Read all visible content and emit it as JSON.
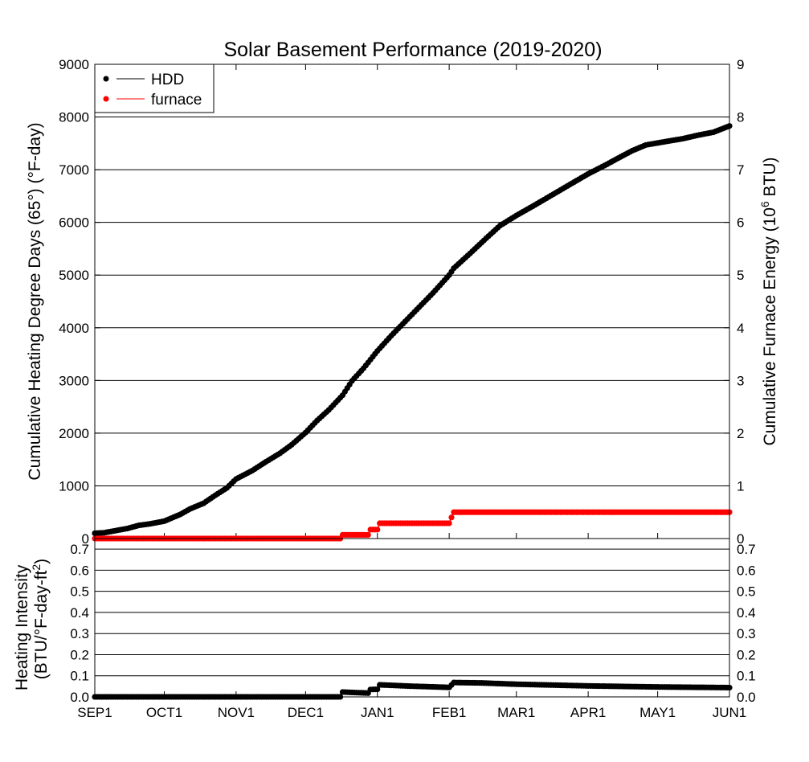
{
  "chart_data": {
    "type": "line",
    "title": "Solar Basement Performance (2019-2020)",
    "x_ticks": [
      "SEP1",
      "OCT1",
      "NOV1",
      "DEC1",
      "JAN1",
      "FEB1",
      "MAR1",
      "APR1",
      "MAY1",
      "JUN1"
    ],
    "xlim": [
      "2019-09-01",
      "2020-06-01"
    ],
    "top": {
      "ylabel_left": "Cumulative Heating Degree Days (65°) (°F-day)",
      "ylabel_right": "Cumulative Furnace Energy (10^6 BTU)",
      "ylim_left": [
        0,
        9000
      ],
      "ylim_right": [
        0,
        9
      ],
      "yticks_left": [
        "0",
        "1000",
        "2000",
        "3000",
        "4000",
        "5000",
        "6000",
        "7000",
        "8000",
        "9000"
      ],
      "yticks_right": [
        "0",
        "1",
        "2",
        "3",
        "4",
        "5",
        "6",
        "7",
        "8",
        "9"
      ],
      "grid": true,
      "legend_position": "top-left",
      "series": [
        {
          "name": "HDD",
          "axis": "left",
          "color": "#000000",
          "points": [
            [
              "2019-09-01",
              100
            ],
            [
              "2019-09-05",
              110
            ],
            [
              "2019-09-10",
              150
            ],
            [
              "2019-09-15",
              190
            ],
            [
              "2019-09-20",
              250
            ],
            [
              "2019-09-25",
              280
            ],
            [
              "2019-10-01",
              330
            ],
            [
              "2019-10-08",
              460
            ],
            [
              "2019-10-12",
              560
            ],
            [
              "2019-10-18",
              670
            ],
            [
              "2019-10-23",
              820
            ],
            [
              "2019-10-28",
              960
            ],
            [
              "2019-11-01",
              1130
            ],
            [
              "2019-11-08",
              1290
            ],
            [
              "2019-11-14",
              1460
            ],
            [
              "2019-11-20",
              1620
            ],
            [
              "2019-11-25",
              1780
            ],
            [
              "2019-12-01",
              2010
            ],
            [
              "2019-12-06",
              2240
            ],
            [
              "2019-12-11",
              2440
            ],
            [
              "2019-12-17",
              2720
            ],
            [
              "2019-12-21",
              2990
            ],
            [
              "2019-12-26",
              3230
            ],
            [
              "2020-01-01",
              3560
            ],
            [
              "2020-01-07",
              3850
            ],
            [
              "2020-01-13",
              4120
            ],
            [
              "2020-01-19",
              4390
            ],
            [
              "2020-01-25",
              4660
            ],
            [
              "2020-02-01",
              5000
            ],
            [
              "2020-02-03",
              5130
            ],
            [
              "2020-02-10",
              5410
            ],
            [
              "2020-02-17",
              5700
            ],
            [
              "2020-02-23",
              5940
            ],
            [
              "2020-03-01",
              6130
            ],
            [
              "2020-03-09",
              6330
            ],
            [
              "2020-03-16",
              6510
            ],
            [
              "2020-03-23",
              6690
            ],
            [
              "2020-04-01",
              6920
            ],
            [
              "2020-04-09",
              7100
            ],
            [
              "2020-04-14",
              7220
            ],
            [
              "2020-04-20",
              7360
            ],
            [
              "2020-04-26",
              7470
            ],
            [
              "2020-05-04",
              7530
            ],
            [
              "2020-05-12",
              7590
            ],
            [
              "2020-05-19",
              7660
            ],
            [
              "2020-05-25",
              7710
            ],
            [
              "2020-06-01",
              7830
            ]
          ]
        },
        {
          "name": "furnace",
          "axis": "right",
          "color": "#ff0000",
          "points": [
            [
              "2019-09-01",
              0
            ],
            [
              "2019-12-16",
              0
            ],
            [
              "2019-12-17",
              0.07
            ],
            [
              "2019-12-28",
              0.07
            ],
            [
              "2019-12-29",
              0.17
            ],
            [
              "2020-01-01",
              0.17
            ],
            [
              "2020-01-02",
              0.29
            ],
            [
              "2020-02-01",
              0.29
            ],
            [
              "2020-02-02",
              0.4
            ],
            [
              "2020-02-03",
              0.5
            ],
            [
              "2020-06-01",
              0.5
            ]
          ]
        }
      ]
    },
    "bottom": {
      "ylabel_left": "Heating Intensity (BTU/°F-day-ft²)",
      "ylim": [
        0,
        0.75
      ],
      "yticks": [
        "0.0",
        "0.1",
        "0.2",
        "0.3",
        "0.4",
        "0.5",
        "0.6",
        "0.7"
      ],
      "grid": true,
      "series": [
        {
          "name": "Heating Intensity",
          "color": "#000000",
          "points": [
            [
              "2019-09-01",
              0
            ],
            [
              "2019-12-16",
              0
            ],
            [
              "2019-12-17",
              0.023
            ],
            [
              "2019-12-28",
              0.018
            ],
            [
              "2019-12-29",
              0.035
            ],
            [
              "2020-01-01",
              0.036
            ],
            [
              "2020-01-02",
              0.057
            ],
            [
              "2020-01-15",
              0.051
            ],
            [
              "2020-02-01",
              0.045
            ],
            [
              "2020-02-03",
              0.068
            ],
            [
              "2020-02-15",
              0.066
            ],
            [
              "2020-03-01",
              0.06
            ],
            [
              "2020-04-01",
              0.052
            ],
            [
              "2020-05-01",
              0.047
            ],
            [
              "2020-06-01",
              0.044
            ]
          ]
        }
      ]
    }
  }
}
